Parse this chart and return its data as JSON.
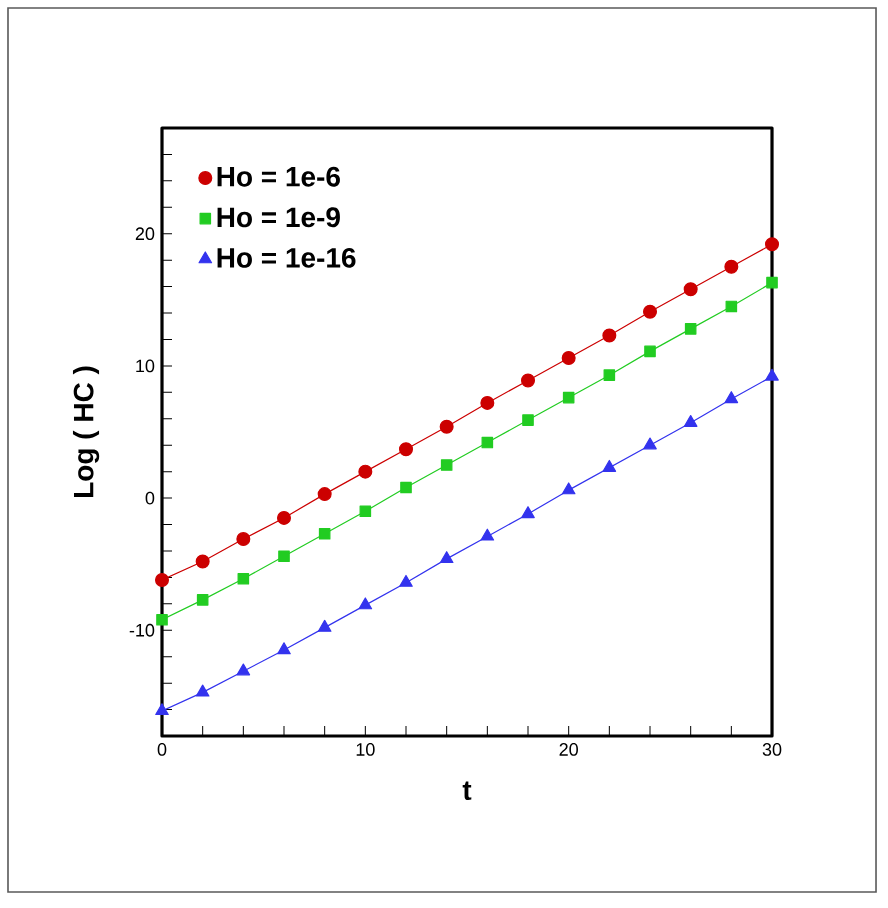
{
  "chart_data": {
    "type": "line",
    "xlabel": "t",
    "ylabel": "Log ( HC )",
    "x": [
      0,
      2,
      4,
      6,
      8,
      10,
      12,
      14,
      16,
      18,
      20,
      22,
      24,
      26,
      28,
      30
    ],
    "series": [
      {
        "name": "Ho = 1e-6",
        "color": "#cc0000",
        "marker": "circle",
        "values": [
          -6.2,
          -4.8,
          -3.1,
          -1.5,
          0.3,
          2.0,
          3.7,
          5.4,
          7.2,
          8.9,
          10.6,
          12.3,
          14.1,
          15.8,
          17.5,
          19.2
        ]
      },
      {
        "name": "Ho = 1e-9",
        "color": "#22cc22",
        "marker": "square",
        "values": [
          -9.2,
          -7.7,
          -6.1,
          -4.4,
          -2.7,
          -1.0,
          0.8,
          2.5,
          4.2,
          5.9,
          7.6,
          9.3,
          11.1,
          12.8,
          14.5,
          16.3
        ]
      },
      {
        "name": "Ho = 1e-16",
        "color": "#3333ee",
        "marker": "triangle",
        "values": [
          -16.1,
          -14.7,
          -13.1,
          -11.5,
          -9.8,
          -8.1,
          -6.4,
          -4.6,
          -2.9,
          -1.2,
          0.6,
          2.3,
          4.0,
          5.7,
          7.5,
          9.2
        ]
      }
    ],
    "xlim": [
      0,
      30
    ],
    "ylim": [
      -18,
      28
    ],
    "xticks": [
      0,
      {
        "value": 2,
        "label": null
      },
      {
        "value": 4,
        "label": null
      },
      {
        "value": 6,
        "label": null
      },
      {
        "value": 8,
        "label": null
      },
      10,
      {
        "value": 12,
        "label": null
      },
      {
        "value": 14,
        "label": null
      },
      {
        "value": 16,
        "label": null
      },
      {
        "value": 18,
        "label": null
      },
      20,
      {
        "value": 22,
        "label": null
      },
      {
        "value": 24,
        "label": null
      },
      {
        "value": 26,
        "label": null
      },
      {
        "value": 28,
        "label": null
      },
      30
    ],
    "yticks": [
      {
        "value": -16,
        "label": null
      },
      {
        "value": -14,
        "label": null
      },
      {
        "value": -12,
        "label": null
      },
      -10,
      {
        "value": -8,
        "label": null
      },
      {
        "value": -6,
        "label": null
      },
      {
        "value": -4,
        "label": null
      },
      {
        "value": -2,
        "label": null
      },
      0,
      {
        "value": 2,
        "label": null
      },
      {
        "value": 4,
        "label": null
      },
      {
        "value": 6,
        "label": null
      },
      {
        "value": 8,
        "label": null
      },
      10,
      {
        "value": 12,
        "label": null
      },
      {
        "value": 14,
        "label": null
      },
      {
        "value": 16,
        "label": null
      },
      {
        "value": 18,
        "label": null
      },
      20,
      {
        "value": 22,
        "label": null
      },
      {
        "value": 24,
        "label": null
      },
      {
        "value": 26,
        "label": null
      }
    ],
    "legend": "top left",
    "line_style": "solid"
  }
}
